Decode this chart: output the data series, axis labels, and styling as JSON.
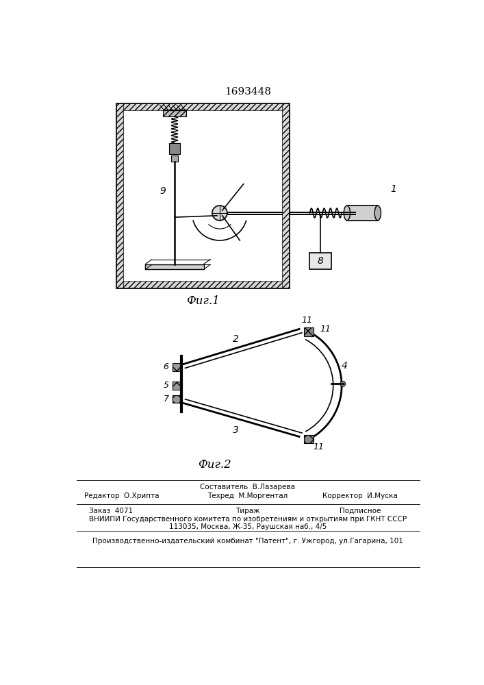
{
  "patent_number": "1693448",
  "fig1_caption": "Фиг.1",
  "fig2_caption": "Фиг.2",
  "bg_color": "#ffffff",
  "line_color": "#000000",
  "editor_line": "Редактор  О.Хрипта",
  "composer_line": "Составитель  В.Лазарева",
  "techred_line": "Техред  М.Моргентал",
  "corrector_line": "Корректор  И.Муска",
  "order_line": "Заказ  4071",
  "tirazh_line": "Тираж",
  "podpisnoe_line": "Подписное",
  "vniip_line": "ВНИИПИ Государственного комитета по изобретениям и открытиям при ГКНТ СССР",
  "address_line": "113035, Москва, Ж-35, Раушская наб., 4/5",
  "publisher_line": "Производственно-издательский комбинат \"Патент\", г. Ужгород, ул.Гагарина, 101"
}
